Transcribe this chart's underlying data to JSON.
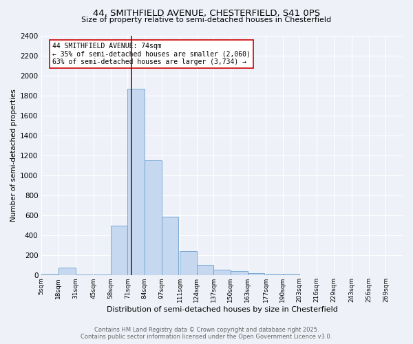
{
  "title_line1": "44, SMITHFIELD AVENUE, CHESTERFIELD, S41 0PS",
  "title_line2": "Size of property relative to semi-detached houses in Chesterfield",
  "xlabel": "Distribution of semi-detached houses by size in Chesterfield",
  "ylabel": "Number of semi-detached properties",
  "footnote1": "Contains HM Land Registry data © Crown copyright and database right 2025.",
  "footnote2": "Contains public sector information licensed under the Open Government Licence v3.0.",
  "annotation_title": "44 SMITHFIELD AVENUE: 74sqm",
  "annotation_line1": "← 35% of semi-detached houses are smaller (2,060)",
  "annotation_line2": "63% of semi-detached houses are larger (3,734) →",
  "property_size": 74,
  "vline_x": 74,
  "bar_color": "#c5d8f0",
  "bar_edgecolor": "#6aa0d0",
  "vline_color": "#990000",
  "annotation_box_color": "#ffffff",
  "annotation_box_edgecolor": "#cc0000",
  "background_color": "#eef2f8",
  "bins_left": [
    5,
    18,
    31,
    45,
    58,
    71,
    84,
    97,
    111,
    124,
    137,
    150,
    163,
    177,
    190,
    203,
    216,
    229,
    243,
    256,
    269
  ],
  "bin_width": 13,
  "bin_heights": [
    15,
    75,
    10,
    10,
    500,
    1870,
    1150,
    590,
    245,
    105,
    60,
    40,
    25,
    15,
    15,
    0,
    0,
    0,
    0,
    0
  ],
  "ylim": [
    0,
    2400
  ],
  "xlim": [
    5,
    282
  ],
  "yticks": [
    0,
    200,
    400,
    600,
    800,
    1000,
    1200,
    1400,
    1600,
    1800,
    2000,
    2200,
    2400
  ],
  "tick_labels": [
    "5sqm",
    "18sqm",
    "31sqm",
    "45sqm",
    "58sqm",
    "71sqm",
    "84sqm",
    "97sqm",
    "111sqm",
    "124sqm",
    "137sqm",
    "150sqm",
    "163sqm",
    "177sqm",
    "190sqm",
    "203sqm",
    "216sqm",
    "229sqm",
    "243sqm",
    "256sqm",
    "269sqm"
  ],
  "tick_positions": [
    5,
    18,
    31,
    45,
    58,
    71,
    84,
    97,
    111,
    124,
    137,
    150,
    163,
    177,
    190,
    203,
    216,
    229,
    243,
    256,
    269
  ],
  "title_fontsize": 9.5,
  "subtitle_fontsize": 8,
  "ylabel_fontsize": 7.5,
  "xlabel_fontsize": 8,
  "tick_fontsize": 6.5,
  "ytick_fontsize": 7.5,
  "annotation_fontsize": 7,
  "footnote_fontsize": 6,
  "footnote_color": "#666666"
}
